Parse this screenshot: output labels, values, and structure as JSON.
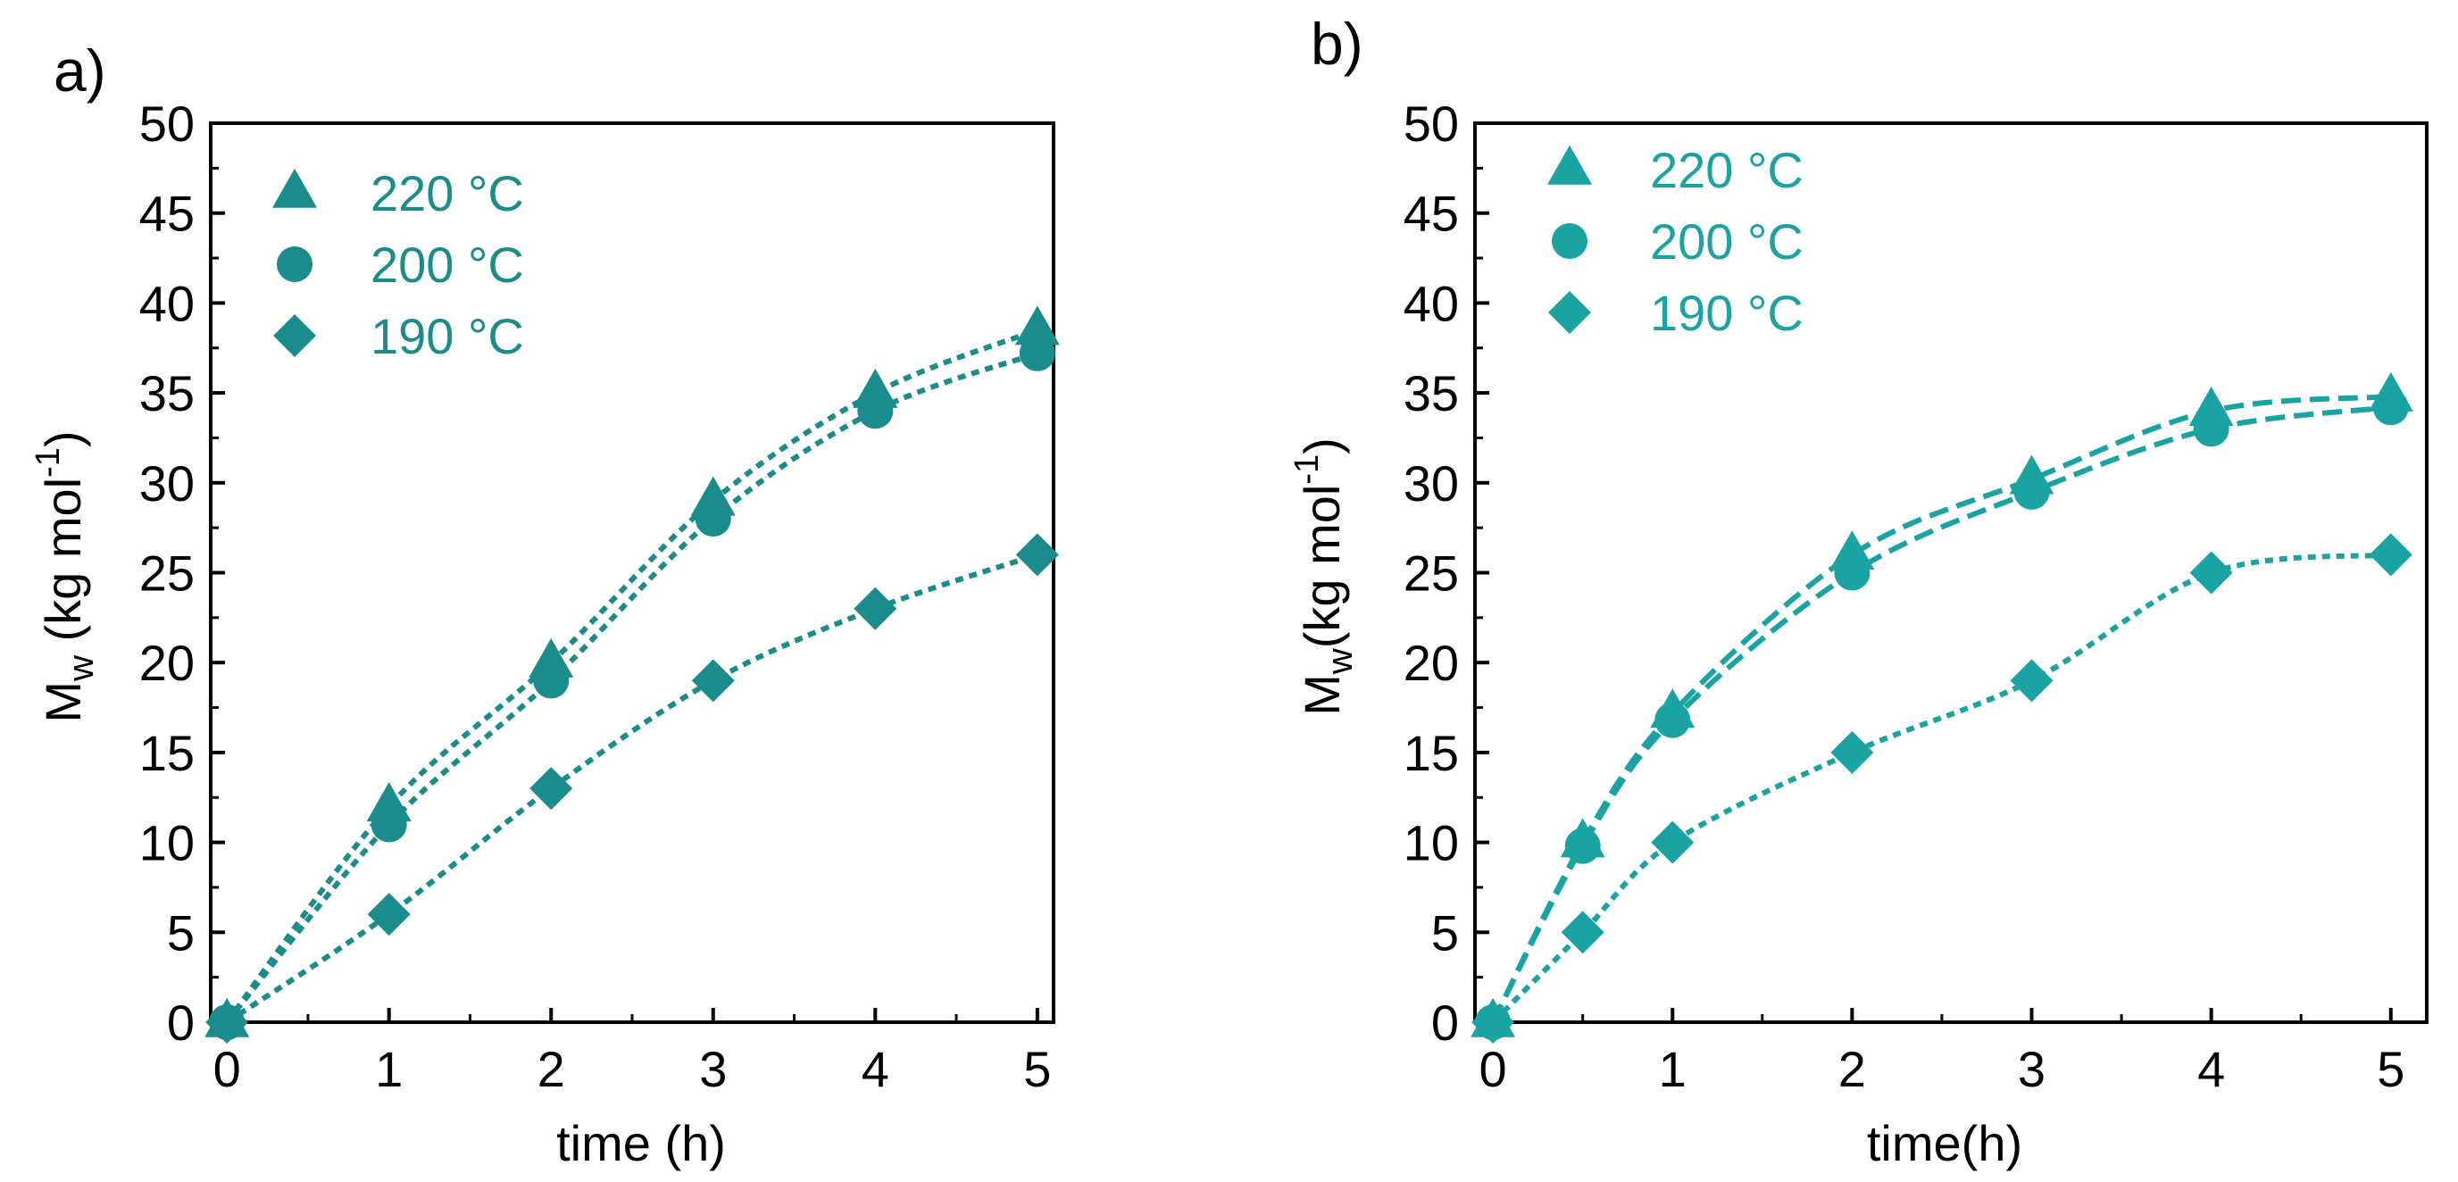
{
  "figure": {
    "panels": [
      {
        "label": "a)",
        "xlabel": "time (h)",
        "ylabel_main": "M",
        "ylabel_sub": "w",
        "ylabel_unit": " (kg mol",
        "ylabel_exp": "-1",
        "ylabel_close": ")"
      },
      {
        "label": "b)",
        "xlabel": "time(h)",
        "ylabel_main": "M",
        "ylabel_sub": "w",
        "ylabel_unit": "(kg mol",
        "ylabel_exp": "-1",
        "ylabel_close": ")"
      }
    ]
  },
  "chart_data": [
    {
      "type": "scatter",
      "panel_label": "a)",
      "title": "",
      "xlabel": "time (h)",
      "ylabel": "Mw (kg mol-1)",
      "xlim": [
        -0.1,
        5.1
      ],
      "ylim": [
        0,
        50
      ],
      "xticks": [
        0,
        1,
        2,
        3,
        4,
        5
      ],
      "yticks": [
        0,
        5,
        10,
        15,
        20,
        25,
        30,
        35,
        40,
        45,
        50
      ],
      "grid": false,
      "legend_position": "top-left",
      "marker_color": "#1a8c8c",
      "series": [
        {
          "name": "220 °C",
          "marker": "triangle",
          "fit": "dotted",
          "x": [
            0,
            1,
            2,
            3,
            4,
            5
          ],
          "y": [
            0,
            12,
            20,
            29,
            35,
            38.5
          ]
        },
        {
          "name": "200 °C",
          "marker": "circle",
          "fit": "dotted",
          "x": [
            0,
            1,
            2,
            3,
            4,
            5
          ],
          "y": [
            0,
            11,
            19,
            28,
            34,
            37.2
          ]
        },
        {
          "name": "190 °C",
          "marker": "diamond",
          "fit": "dotted",
          "x": [
            0,
            1,
            2,
            3,
            4,
            5
          ],
          "y": [
            0,
            6,
            13,
            19,
            23,
            26
          ]
        }
      ]
    },
    {
      "type": "scatter",
      "panel_label": "b)",
      "title": "",
      "xlabel": "time(h)",
      "ylabel": "Mw(kg mol-1)",
      "xlim": [
        -0.1,
        5.2
      ],
      "ylim": [
        0,
        50
      ],
      "xticks": [
        0,
        1,
        2,
        3,
        4,
        5
      ],
      "yticks": [
        0,
        5,
        10,
        15,
        20,
        25,
        30,
        35,
        40,
        45,
        50
      ],
      "grid": false,
      "legend_position": "top-left",
      "marker_color": "#1aa3a3",
      "series": [
        {
          "name": "220 °C",
          "marker": "triangle",
          "fit": "dashed",
          "x": [
            0,
            0.5,
            1,
            2,
            3,
            4,
            5
          ],
          "y": [
            0,
            10,
            17.2,
            26,
            30.2,
            34,
            34.8
          ]
        },
        {
          "name": "200 °C",
          "marker": "circle",
          "fit": "dashed",
          "x": [
            0,
            0.5,
            1,
            2,
            3,
            4,
            5
          ],
          "y": [
            0,
            9.8,
            16.8,
            25,
            29.5,
            33,
            34.2
          ]
        },
        {
          "name": "190 °C",
          "marker": "diamond",
          "fit": "dotted",
          "x": [
            0,
            0.5,
            1,
            2,
            3,
            4,
            5
          ],
          "y": [
            0,
            5,
            10,
            15,
            19,
            25,
            26
          ]
        }
      ]
    }
  ]
}
